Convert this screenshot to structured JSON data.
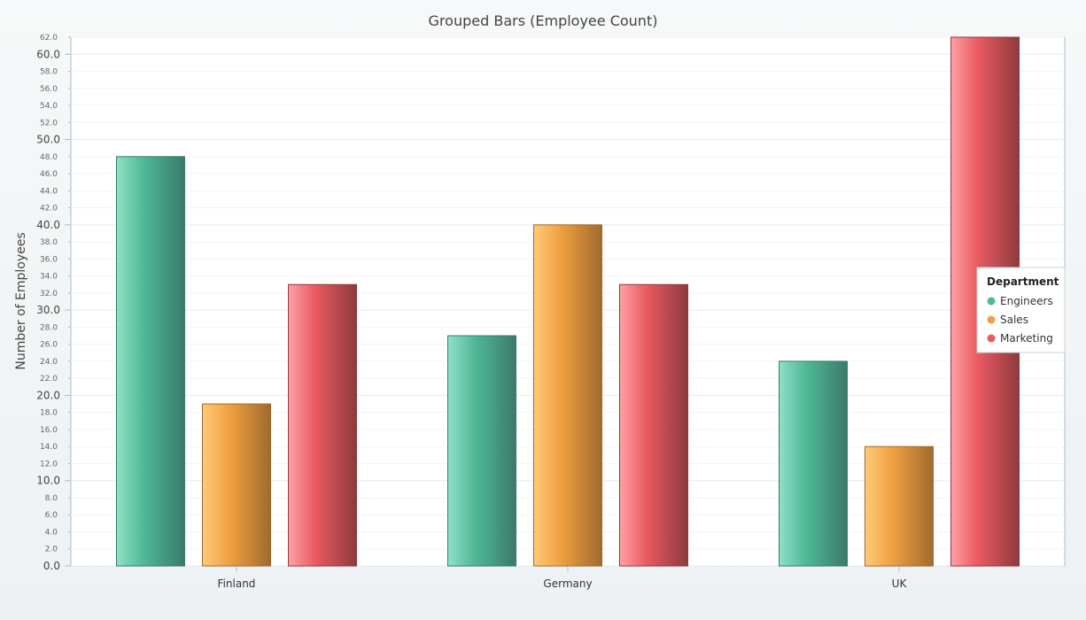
{
  "chart_data": {
    "type": "bar",
    "title": "Grouped Bars (Employee Count)",
    "xlabel": "",
    "ylabel": "Number of Employees",
    "categories": [
      "Finland",
      "Germany",
      "UK"
    ],
    "ylim": [
      0,
      62
    ],
    "major_ticks": [
      "0.0",
      "10.0",
      "20.0",
      "30.0",
      "40.0",
      "50.0",
      "60.0"
    ],
    "minor_ticks": [
      "2.0",
      "4.0",
      "6.0",
      "8.0",
      "12.0",
      "14.0",
      "16.0",
      "18.0",
      "22.0",
      "24.0",
      "26.0",
      "28.0",
      "32.0",
      "34.0",
      "36.0",
      "38.0",
      "42.0",
      "44.0",
      "46.0",
      "48.0",
      "52.0",
      "54.0",
      "56.0",
      "58.0",
      "62.0"
    ],
    "grid": true,
    "legend": {
      "title": "Department",
      "placement": "right"
    },
    "series": [
      {
        "name": "Engineers",
        "values": [
          48,
          27,
          24
        ],
        "color": "#4fb896",
        "color_light": "#8fe0c6",
        "color_dark": "#3a7a6a"
      },
      {
        "name": "Sales",
        "values": [
          19,
          40,
          14
        ],
        "color": "#f0a040",
        "color_light": "#ffc97a",
        "color_dark": "#a06a2e"
      },
      {
        "name": "Marketing",
        "values": [
          33,
          33,
          62
        ],
        "color": "#e85a60",
        "color_light": "#ffa0a5",
        "color_dark": "#8e3a3e"
      }
    ]
  }
}
